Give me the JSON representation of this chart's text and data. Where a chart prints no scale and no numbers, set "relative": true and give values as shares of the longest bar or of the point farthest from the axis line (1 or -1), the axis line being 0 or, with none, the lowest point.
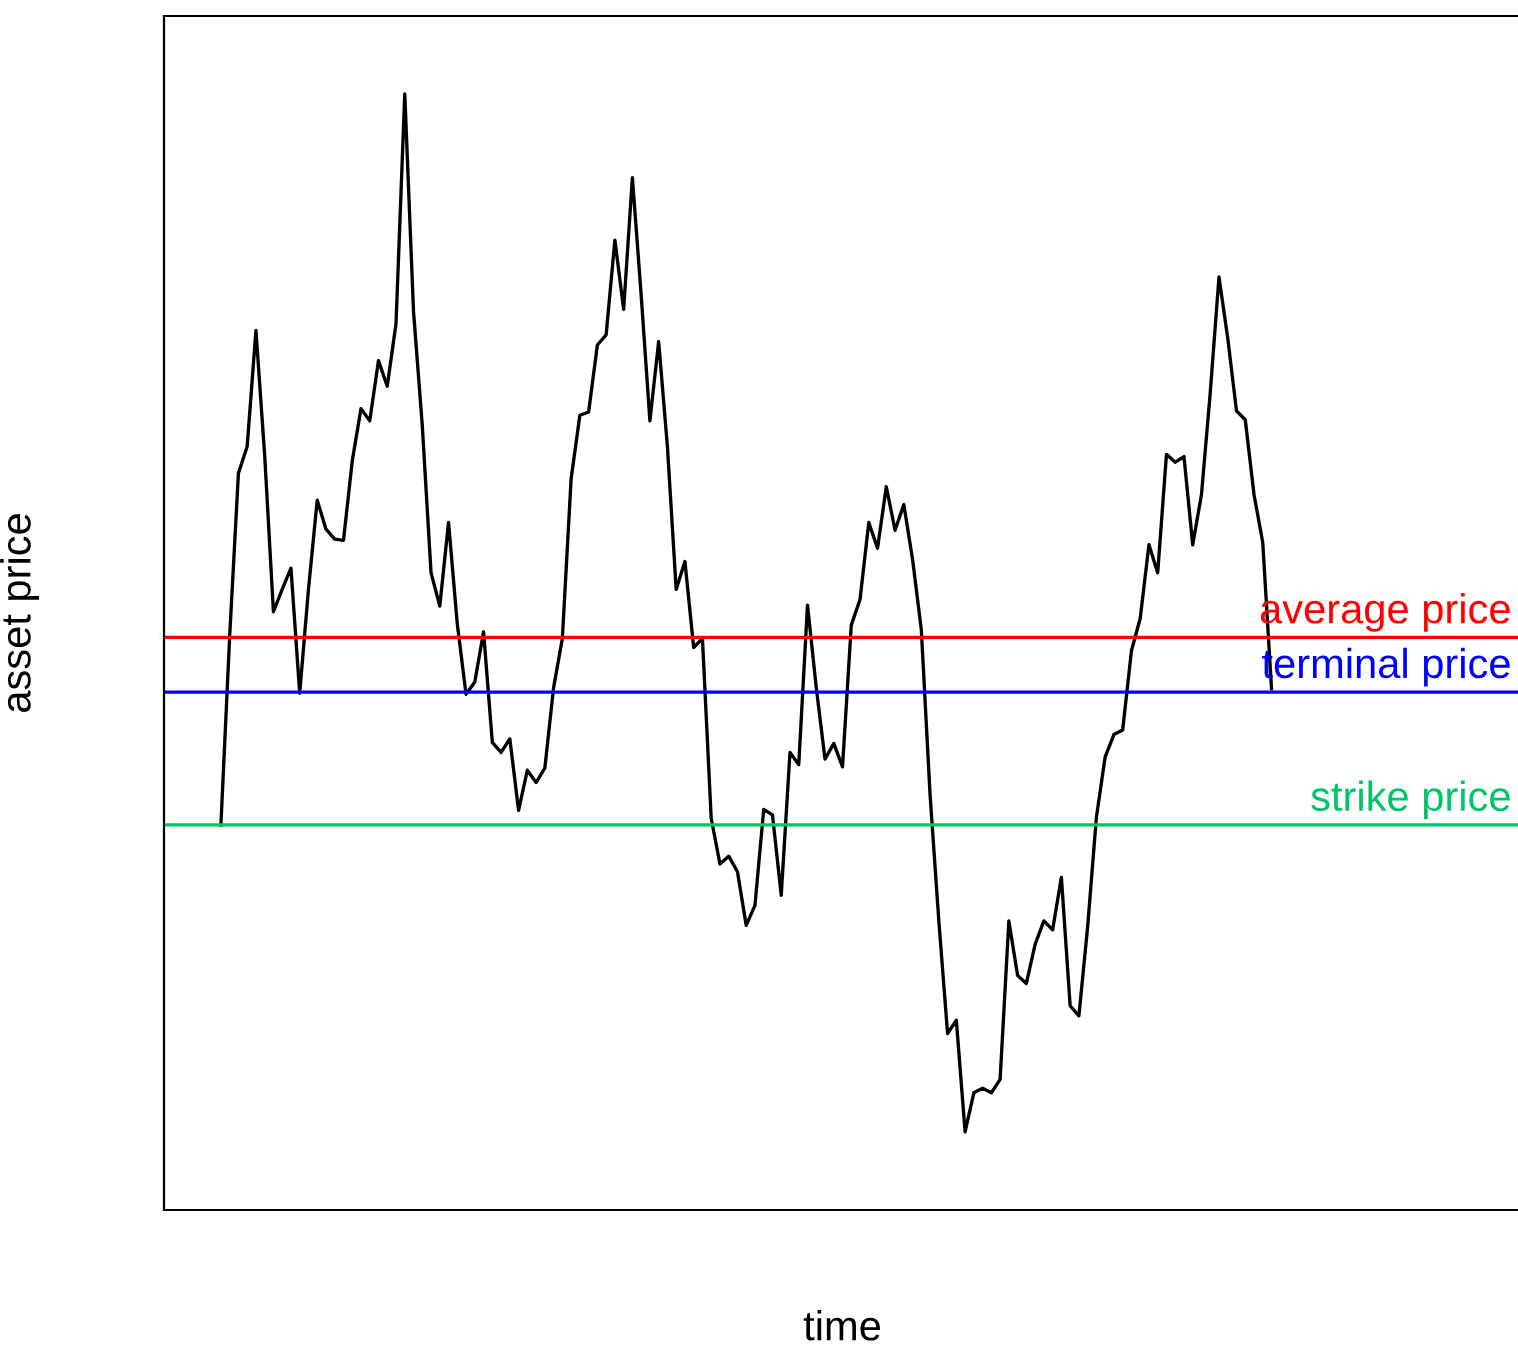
{
  "chart_data": {
    "type": "line",
    "xlabel": "time",
    "ylabel": "asset price",
    "relative": true,
    "categories": [
      null,
      null,
      null,
      null,
      null,
      null,
      null,
      null,
      null,
      null,
      null,
      null,
      null,
      null,
      null,
      null,
      null,
      null,
      null,
      null,
      null,
      null,
      null,
      null,
      null,
      null,
      null,
      null,
      null,
      null,
      null,
      null,
      null,
      null,
      null,
      null,
      null,
      null,
      null,
      null,
      null,
      null,
      null,
      null,
      null,
      null,
      null,
      null,
      null,
      null,
      null,
      null,
      null,
      null,
      null,
      null,
      null,
      null,
      null,
      null,
      null,
      null,
      null,
      null,
      null,
      null,
      null,
      null,
      null,
      null,
      null,
      null,
      null,
      null,
      null,
      null,
      null,
      null,
      null,
      null,
      null,
      null,
      null,
      null,
      null,
      null,
      null,
      null,
      null,
      null,
      null,
      null,
      null,
      null,
      null,
      null,
      null,
      null,
      null,
      null,
      null,
      null,
      null,
      null,
      null,
      null,
      null,
      null,
      null,
      null,
      null,
      null,
      null,
      null,
      null,
      null,
      null,
      null,
      null,
      null,
      null,
      null,
      null,
      null,
      null,
      null,
      null,
      null,
      null,
      null,
      null,
      null,
      null,
      null,
      null,
      null,
      null,
      null,
      null,
      null,
      null,
      null,
      null,
      null,
      null,
      null,
      null,
      null,
      null,
      null,
      null,
      null,
      null,
      null,
      null
    ],
    "series": [
      {
        "color": "#000000",
        "values": [
          null,
          null,
          null,
          null,
          null,
          null,
          0.345,
          0.514,
          0.66,
          0.684,
          0.788,
          0.676,
          0.536,
          0.556,
          0.575,
          0.463,
          0.556,
          0.636,
          0.61,
          0.601,
          0.6,
          0.671,
          0.718,
          0.707,
          0.761,
          0.738,
          0.794,
          1.0,
          0.805,
          0.703,
          0.571,
          0.541,
          0.616,
          0.525,
          0.462,
          0.473,
          0.518,
          0.419,
          0.41,
          0.422,
          0.358,
          0.394,
          0.383,
          0.396,
          0.468,
          0.512,
          0.655,
          0.712,
          0.715,
          0.775,
          0.784,
          0.869,
          0.807,
          0.925,
          0.82,
          0.707,
          0.778,
          0.684,
          0.556,
          0.581,
          0.504,
          0.512,
          0.351,
          0.31,
          0.317,
          0.303,
          0.255,
          0.273,
          0.359,
          0.354,
          0.282,
          0.41,
          0.399,
          0.542,
          0.468,
          0.404,
          0.418,
          0.397,
          0.524,
          0.547,
          0.616,
          0.593,
          0.648,
          0.609,
          0.632,
          0.583,
          0.52,
          0.372,
          0.259,
          0.158,
          0.17,
          0.07,
          0.105,
          0.109,
          0.105,
          0.117,
          0.259,
          0.21,
          0.203,
          0.238,
          0.259,
          0.251,
          0.298,
          0.183,
          0.174,
          0.254,
          0.352,
          0.406,
          0.426,
          0.43,
          0.501,
          0.53,
          0.596,
          0.571,
          0.677,
          0.67,
          0.675,
          0.596,
          0.641,
          0.732,
          0.836,
          0.781,
          0.716,
          0.708,
          0.641,
          0.598,
          0.467,
          null,
          null,
          null,
          null,
          null,
          null,
          null,
          null,
          null,
          null,
          null,
          null,
          null,
          null,
          null,
          null,
          null,
          null,
          null,
          null,
          null,
          null,
          null,
          null,
          null,
          null,
          null,
          null
        ]
      }
    ],
    "ref_lines": [
      {
        "axis": "y",
        "value": 0.513,
        "label": "average price",
        "color": "#ff0000"
      },
      {
        "axis": "y",
        "value": 0.464,
        "label": "terminal price",
        "color": "#0000ff"
      },
      {
        "axis": "y",
        "value": 0.345,
        "label": "strike price",
        "color": "#00c466"
      }
    ]
  }
}
